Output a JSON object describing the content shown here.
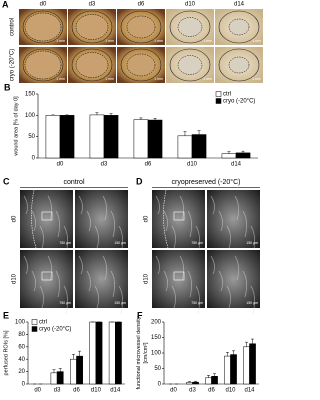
{
  "panels": {
    "A": {
      "label": "A",
      "columns": [
        "d0",
        "d3",
        "d6",
        "d10",
        "d14"
      ],
      "rows": [
        "control",
        "cryo (-20°C)"
      ],
      "scale_bar": "1 mm"
    },
    "C": {
      "label": "C",
      "title": "control",
      "rows": [
        "d0",
        "d10"
      ],
      "scale_bars": [
        "750 µm",
        "150 µm"
      ]
    },
    "D": {
      "label": "D",
      "title": "cryopreserved (-20°C)",
      "rows": [
        "d0",
        "d10"
      ],
      "scale_bars": [
        "750 µm",
        "150 µm"
      ]
    }
  },
  "chart_data": [
    {
      "type": "bar",
      "label": "B",
      "y_label": [
        "wound area [% of day 0]"
      ],
      "categories": [
        "d0",
        "d3",
        "d6",
        "d10",
        "d14"
      ],
      "series": [
        {
          "name": "ctrl",
          "color": "#ffffff",
          "values": [
            100,
            101,
            90,
            52,
            10
          ],
          "errors": [
            1,
            5,
            4,
            10,
            5
          ]
        },
        {
          "name": "cryo (-20°C)",
          "color": "#000000",
          "values": [
            100,
            100,
            89,
            55,
            12
          ],
          "errors": [
            1,
            4,
            4,
            9,
            4
          ]
        }
      ],
      "ylim": [
        0,
        150
      ],
      "yticks": [
        0,
        50,
        100,
        150
      ],
      "legend": "upper right"
    },
    {
      "type": "bar",
      "label": "E",
      "y_label": [
        "perfused ROIs [%]"
      ],
      "categories": [
        "d0",
        "d3",
        "d6",
        "d10",
        "d14"
      ],
      "series": [
        {
          "name": "ctrl",
          "color": "#ffffff",
          "values": [
            0,
            18,
            40,
            100,
            100
          ],
          "errors": [
            0,
            5,
            8,
            0,
            0
          ]
        },
        {
          "name": "cryo (-20°C)",
          "color": "#000000",
          "values": [
            0,
            20,
            45,
            100,
            100
          ],
          "errors": [
            0,
            5,
            8,
            0,
            0
          ]
        }
      ],
      "ylim": [
        0,
        100
      ],
      "yticks": [
        0,
        20,
        40,
        60,
        80,
        100
      ],
      "legend": "upper left"
    },
    {
      "type": "bar",
      "label": "F",
      "y_label": [
        "functional microvessel density",
        "[cm/cm²]"
      ],
      "categories": [
        "d0",
        "d3",
        "d6",
        "d10",
        "d14"
      ],
      "series": [
        {
          "name": "ctrl",
          "color": "#ffffff",
          "values": [
            0,
            5,
            20,
            90,
            120
          ],
          "errors": [
            0,
            3,
            8,
            12,
            15
          ]
        },
        {
          "name": "cryo (-20°C)",
          "color": "#000000",
          "values": [
            0,
            6,
            25,
            95,
            130
          ],
          "errors": [
            0,
            3,
            8,
            12,
            15
          ]
        }
      ],
      "ylim": [
        0,
        200
      ],
      "yticks": [
        0,
        50,
        100,
        150,
        200
      ]
    }
  ]
}
